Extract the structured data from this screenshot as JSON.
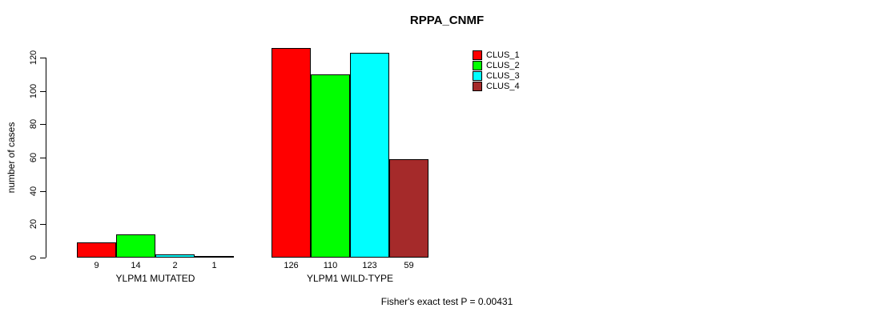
{
  "chart_data": {
    "type": "bar",
    "title": "RPPA_CNMF",
    "xlabel": "",
    "ylabel": "number of cases",
    "ylim": [
      0,
      120
    ],
    "yticks": [
      0,
      20,
      40,
      60,
      80,
      100,
      120
    ],
    "grid": false,
    "legend_position": "right",
    "categories": [
      "YLPM1 MUTATED",
      "YLPM1 WILD-TYPE"
    ],
    "series": [
      {
        "name": "CLUS_1",
        "color": "#FF0000",
        "values": [
          9,
          126
        ]
      },
      {
        "name": "CLUS_2",
        "color": "#00FF00",
        "values": [
          14,
          110
        ]
      },
      {
        "name": "CLUS_3",
        "color": "#00FFFF",
        "values": [
          2,
          123
        ]
      },
      {
        "name": "CLUS_4",
        "color": "#A52A2A",
        "values": [
          1,
          59
        ]
      }
    ],
    "bar_value_labels": [
      [
        9,
        14,
        2,
        1
      ],
      [
        126,
        110,
        123,
        59
      ]
    ],
    "note": "Fisher's exact test P = 0.00431"
  }
}
